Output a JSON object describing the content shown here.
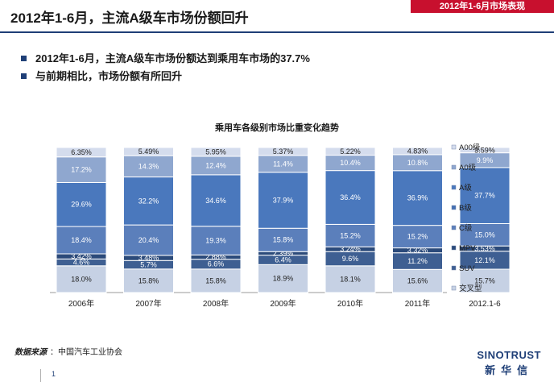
{
  "header": {
    "title": "2012年1-6月，主流A级车市场份额回升",
    "section_tag": "2012年1-6月市场表现"
  },
  "bullets": [
    "2012年1-6月，主流A级车市场份额达到乘用车市场的37.7%",
    "与前期相比，市场份额有所回升"
  ],
  "footer": {
    "source_label": "数据来源",
    "source_value": "：中国汽车工业协会",
    "page_number": "1",
    "logo_en": "SINOTRUST",
    "logo_cn": "新华信"
  },
  "colors": {
    "brand": "#1f3f77",
    "tag": "#c8102e"
  },
  "chart_data": {
    "type": "bar",
    "stacked": true,
    "percent": true,
    "title": "乘用车各级别市场比重变化趋势",
    "xlabel": "",
    "ylabel": "",
    "ylim": [
      0,
      100
    ],
    "grid": false,
    "legend_position": "right",
    "categories": [
      "2006年",
      "2007年",
      "2008年",
      "2009年",
      "2010年",
      "2011年",
      "2012.1-6"
    ],
    "series": [
      {
        "name": "交叉型",
        "color": "#c6d1e4",
        "values": [
          18.0,
          15.8,
          15.8,
          18.9,
          18.1,
          15.6,
          15.7
        ],
        "labels": [
          "18.0%",
          "15.8%",
          "15.8%",
          "18.9%",
          "18.1%",
          "15.6%",
          "15.7%"
        ]
      },
      {
        "name": "SUV",
        "color": "#3e5f92",
        "values": [
          4.6,
          5.7,
          6.6,
          6.4,
          9.6,
          11.2,
          12.1
        ],
        "labels": [
          "4.6%",
          "5.7%",
          "6.6%",
          "6.4%",
          "9.6%",
          "11.2%",
          "12.1%"
        ]
      },
      {
        "name": "MPV",
        "color": "#2b4a7a",
        "values": [
          3.42,
          3.48,
          2.88,
          2.39,
          3.24,
          3.32,
          3.53
        ],
        "labels": [
          "3.42%",
          "3.48%",
          "2.88%",
          "2.39%",
          "3.24%",
          "3.32%",
          "3.53%"
        ]
      },
      {
        "name": "C级",
        "color": "#5b7fbb",
        "values": [
          18.4,
          20.4,
          19.3,
          15.8,
          15.2,
          15.2,
          15.0
        ],
        "labels": [
          "18.4%",
          "20.4%",
          "19.3%",
          "15.8%",
          "15.2%",
          "15.2%",
          "15.0%"
        ]
      },
      {
        "name": "B级",
        "color": "#436fb2",
        "values": [
          0,
          0,
          0,
          0,
          0,
          0,
          0
        ],
        "labels": [
          "",
          "",
          "",
          "",
          "",
          "",
          ""
        ]
      },
      {
        "name": "A级",
        "color": "#4a78bd",
        "values": [
          29.6,
          32.2,
          34.6,
          37.9,
          36.4,
          36.9,
          37.7
        ],
        "labels": [
          "29.6%",
          "32.2%",
          "34.6%",
          "37.9%",
          "36.4%",
          "36.9%",
          "37.7%"
        ]
      },
      {
        "name": "A0级",
        "color": "#8fa7cf",
        "values": [
          17.2,
          14.3,
          12.4,
          11.4,
          10.4,
          10.8,
          9.9
        ],
        "labels": [
          "17.2%",
          "14.3%",
          "12.4%",
          "11.4%",
          "10.4%",
          "10.8%",
          "9.9%"
        ]
      },
      {
        "name": "A00级",
        "color": "#d4dced",
        "values": [
          6.35,
          5.49,
          5.95,
          5.37,
          5.22,
          4.83,
          3.59
        ],
        "labels": [
          "6.35%",
          "5.49%",
          "5.95%",
          "5.37%",
          "5.22%",
          "4.83%",
          "3.59%"
        ]
      }
    ]
  }
}
